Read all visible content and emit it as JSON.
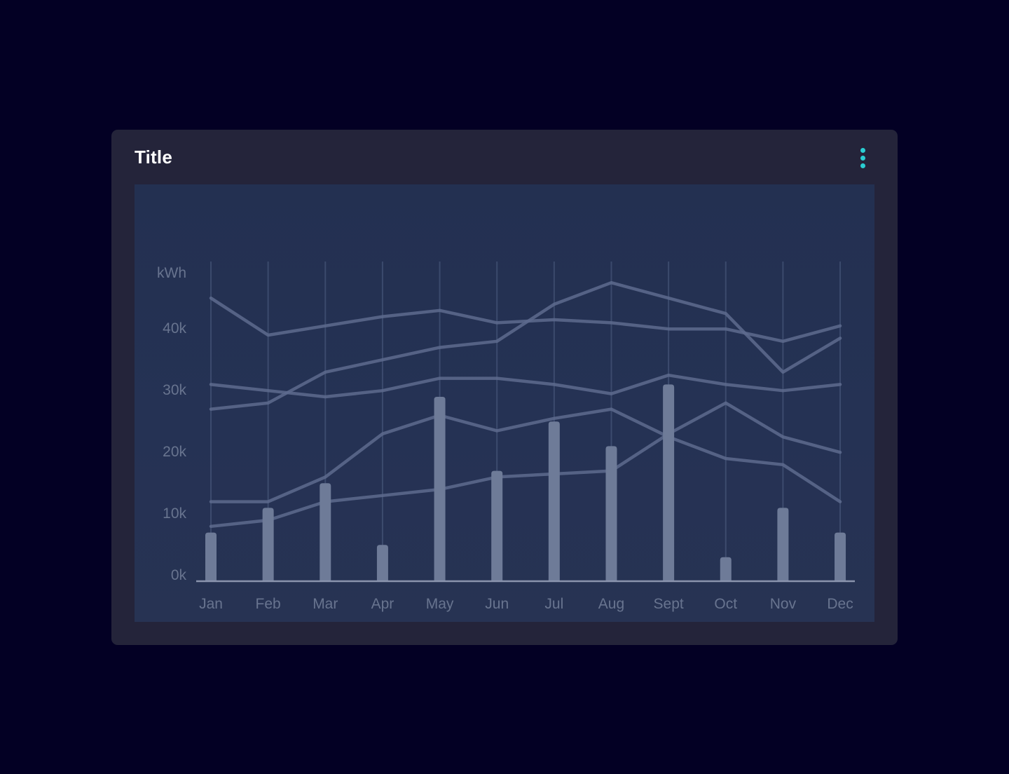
{
  "card": {
    "title": "Title",
    "menu_icon": "kebab-menu-icon",
    "accent_color": "#2acdd2",
    "background_color": "#24243a"
  },
  "chart_data": {
    "type": "bar+line",
    "title": "",
    "unit_label": "kWh",
    "xlabel": "",
    "ylabel": "kWh",
    "categories": [
      "Jan",
      "Feb",
      "Mar",
      "Apr",
      "May",
      "Jun",
      "Jul",
      "Aug",
      "Sept",
      "Oct",
      "Nov",
      "Dec"
    ],
    "y_ticks": [
      {
        "label": "40k",
        "value": 40
      },
      {
        "label": "30k",
        "value": 30
      },
      {
        "label": "20k",
        "value": 20
      },
      {
        "label": "10k",
        "value": 10
      },
      {
        "label": "0k",
        "value": 0
      }
    ],
    "ylim": [
      0,
      52
    ],
    "grid": "vertical-only",
    "legend": "none",
    "bars": {
      "name": "monthly-consumption-bars",
      "unit": "kWh (thousands)",
      "values": [
        8,
        12,
        16,
        6,
        30,
        18,
        26,
        22,
        32,
        4,
        12,
        8
      ]
    },
    "series": [
      {
        "name": "line-1",
        "values": [
          46,
          40,
          41.5,
          43,
          44,
          42,
          42.5,
          42,
          41,
          41,
          39,
          41.5
        ]
      },
      {
        "name": "line-2",
        "values": [
          32,
          31,
          30,
          31,
          33,
          33,
          32,
          30.5,
          33.5,
          32,
          31,
          32
        ]
      },
      {
        "name": "line-3",
        "values": [
          28,
          29,
          34,
          36,
          38,
          39,
          45,
          48.5,
          46,
          43.5,
          34,
          39.5
        ]
      },
      {
        "name": "line-4",
        "values": [
          13,
          13,
          17,
          24,
          27,
          24.5,
          26.5,
          28,
          23.5,
          20,
          19,
          13
        ]
      },
      {
        "name": "line-5",
        "values": [
          9,
          10,
          13,
          14,
          15,
          17,
          17.5,
          18,
          24,
          29,
          23.5,
          21
        ]
      }
    ],
    "colors": {
      "panel_background_top": "#233051",
      "panel_background_bottom": "#273353",
      "bar_fill": "#6e7b98",
      "line_stroke": "#5e6b8e",
      "gridline": "#8091b8",
      "axis_line": "#8a94ad",
      "tick_label": "#68748f"
    }
  }
}
